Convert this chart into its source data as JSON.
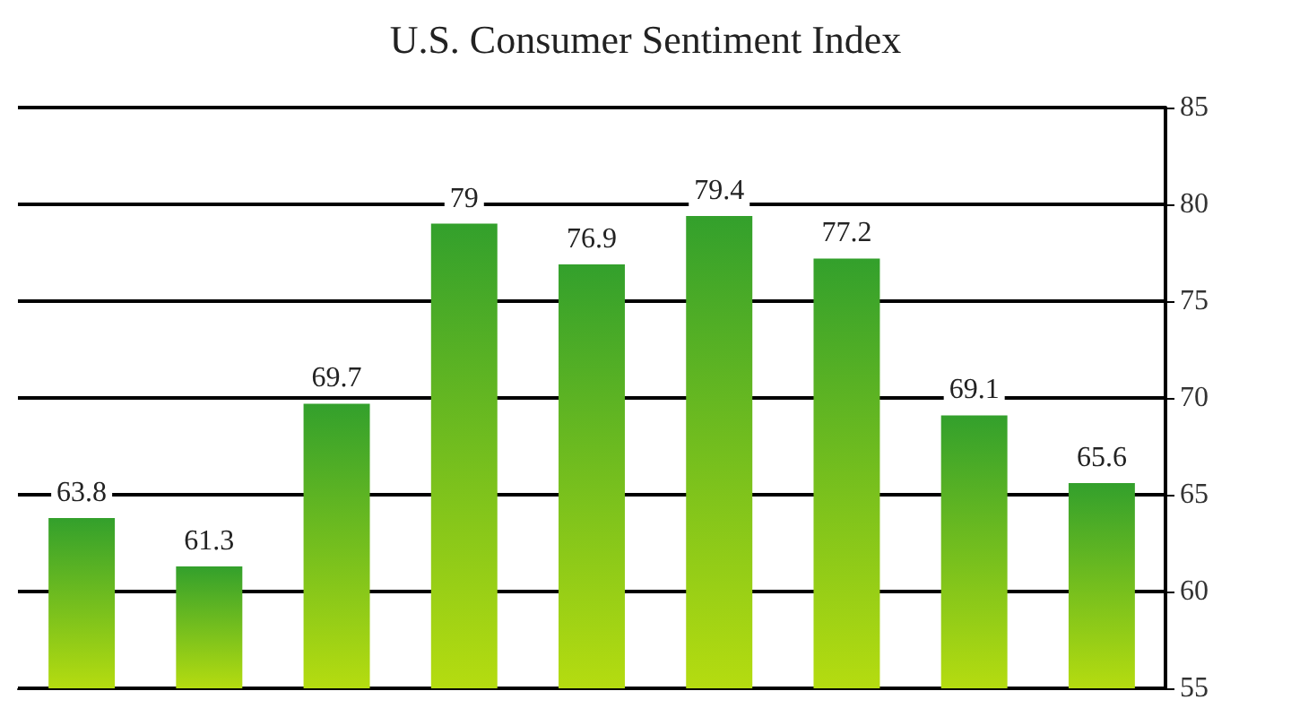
{
  "chart_data": {
    "type": "bar",
    "title": "U.S. Consumer Sentiment Index",
    "categories": [
      null,
      null,
      null,
      null,
      null,
      null,
      null,
      null,
      null
    ],
    "values": [
      63.8,
      61.3,
      69.7,
      79,
      76.9,
      79.4,
      77.2,
      69.1,
      65.6
    ],
    "color": "#33a02c",
    "ylim": [
      55,
      85
    ],
    "yticks": [
      55,
      60,
      65,
      70,
      75,
      80,
      85
    ],
    "grid": "y",
    "data_labels": true
  }
}
